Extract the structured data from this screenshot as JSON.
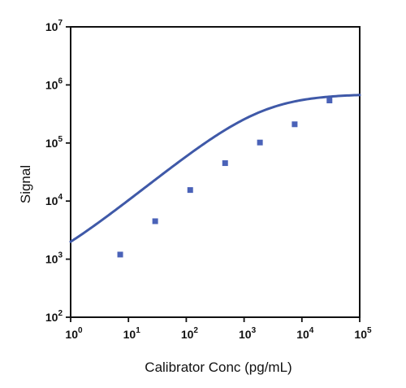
{
  "chart_data": {
    "type": "scatter",
    "title": "",
    "xlabel": "Calibrator Conc (pg/mL)",
    "ylabel": "Signal",
    "xscale": "log",
    "yscale": "log",
    "xlim": [
      1,
      100000
    ],
    "ylim": [
      100,
      10000000
    ],
    "grid": false,
    "x_ticks": [
      {
        "base": "10",
        "exp": "0"
      },
      {
        "base": "10",
        "exp": "1"
      },
      {
        "base": "10",
        "exp": "2"
      },
      {
        "base": "10",
        "exp": "3"
      },
      {
        "base": "10",
        "exp": "4"
      },
      {
        "base": "10",
        "exp": "5"
      }
    ],
    "y_ticks": [
      {
        "base": "10",
        "exp": "2"
      },
      {
        "base": "10",
        "exp": "3"
      },
      {
        "base": "10",
        "exp": "4"
      },
      {
        "base": "10",
        "exp": "5"
      },
      {
        "base": "10",
        "exp": "6"
      },
      {
        "base": "10",
        "exp": "7"
      }
    ],
    "points": [
      {
        "x": 7.2,
        "y": 1200
      },
      {
        "x": 29,
        "y": 4500
      },
      {
        "x": 117,
        "y": 15500
      },
      {
        "x": 470,
        "y": 45000
      },
      {
        "x": 1880,
        "y": 102000
      },
      {
        "x": 7500,
        "y": 210000
      },
      {
        "x": 30000,
        "y": 540000
      }
    ],
    "fit_curve": {
      "model": "4PL",
      "bottom": 400,
      "top": 700000,
      "ec50": 2000,
      "hill": 0.8
    },
    "colors": {
      "marker": "#4a62b8",
      "curve": "#3f59a8",
      "axis": "#111111"
    }
  }
}
